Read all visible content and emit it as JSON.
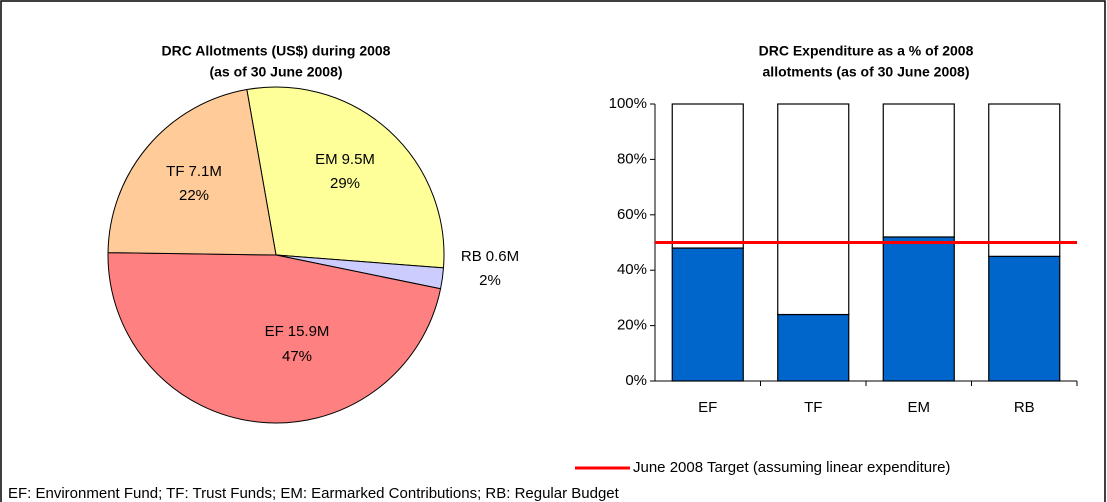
{
  "chart_data": [
    {
      "type": "pie",
      "title": [
        "DRC Allotments (US$) during 2008",
        "(as of 30 June 2008)"
      ],
      "categories": [
        "EM",
        "RB",
        "EF",
        "TF"
      ],
      "values": [
        29,
        2,
        47,
        22
      ],
      "value_labels": [
        "29%",
        "2%",
        "47%",
        "22%"
      ],
      "amounts": [
        9.5,
        0.6,
        15.9,
        7.1
      ],
      "amount_labels": [
        "9.5M",
        "0.6M",
        "15.9M",
        "7.1M"
      ],
      "colors": [
        "#ffff99",
        "#ccccff",
        "#ff8080",
        "#ffcc99"
      ]
    },
    {
      "type": "stacked_bar",
      "title": [
        "DRC Expenditure as a % of 2008",
        "allotments (as of 30 June 2008)"
      ],
      "categories": [
        "EF",
        "TF",
        "EM",
        "RB"
      ],
      "series": [
        {
          "color": "#0066cc",
          "values": [
            48,
            24,
            52,
            45
          ]
        },
        {
          "color": "#ffffff",
          "values": [
            52,
            76,
            48,
            55
          ]
        }
      ],
      "ylim": [
        0,
        100
      ],
      "yticks": [
        {
          "value": 0,
          "label": "0%"
        },
        {
          "value": 20,
          "label": "20%"
        },
        {
          "value": 40,
          "label": "40%"
        },
        {
          "value": 60,
          "label": "60%"
        },
        {
          "value": 80,
          "label": "80%"
        },
        {
          "value": 100,
          "label": "100%"
        }
      ],
      "target": {
        "value": 50,
        "label": "June 2008 Target (assuming linear expenditure)",
        "color": "#ff0000"
      }
    }
  ],
  "footnote": "EF: Environment Fund; TF: Trust Funds; EM: Earmarked Contributions; RB: Regular Budget"
}
